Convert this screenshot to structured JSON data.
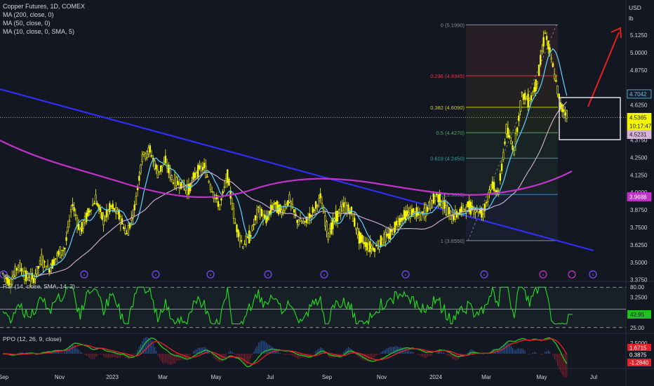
{
  "legend": {
    "title": "Copper Futures, 1D, COMEX",
    "ma200": "MA (200, close, 0)",
    "ma50": "MA (50, close, 0)",
    "ma10": "MA (10, close, 0, SMA, 5)"
  },
  "price_axis": {
    "currency": "USD",
    "unit": "lb",
    "ticks": [
      "5.1250",
      "5.0000",
      "4.8750",
      "4.6250",
      "4.3750",
      "4.2500",
      "4.1250",
      "4.0000",
      "3.8750",
      "3.7500",
      "3.6250",
      "3.5000",
      "3.3750",
      "3.2500",
      "3.1250"
    ],
    "badges": [
      {
        "text": "4.7042",
        "price": 4.7042,
        "bg": "#1a1e2a",
        "fg": "#5bc8f0",
        "border": "#5bc8f0"
      },
      {
        "text": "4.5365",
        "price": 4.5365,
        "bg": "#f5f500",
        "fg": "#131722",
        "border": "#f5f500"
      },
      {
        "text": "10:17:47",
        "price": 4.475,
        "bg": "#f5f500",
        "fg": "#131722",
        "border": "#f5f500"
      },
      {
        "text": "4.5231",
        "price": 4.415,
        "bg": "#d7b4d8",
        "fg": "#131722",
        "border": "#d7b4d8"
      },
      {
        "text": "3.9688",
        "price": 3.9688,
        "bg": "#c332c8",
        "fg": "#ffffff",
        "border": "#c332c8"
      }
    ]
  },
  "fib_levels": [
    {
      "label": "0 (5.1990)",
      "price": 5.199,
      "color": "#8a8e99"
    },
    {
      "label": "0.236 (4.8345)",
      "price": 4.8345,
      "color": "#e0393f"
    },
    {
      "label": "0.382 (4.6090)",
      "price": 4.609,
      "color": "#c8d400"
    },
    {
      "label": "0.5 (4.4270)",
      "price": 4.427,
      "color": "#4caf50"
    },
    {
      "label": "0.618 (4.2450)",
      "price": 4.245,
      "color": "#26a69a"
    },
    {
      "label": "0.786 (3.9855)",
      "price": 3.9855,
      "color": "#2f8fdd"
    },
    {
      "label": "1 (3.6550)",
      "price": 3.655,
      "color": "#8a8e99"
    }
  ],
  "rsi": {
    "label": "RSI (14, close, SMA, 14, 2)",
    "levels": [
      "80.00",
      "25.00"
    ],
    "value": "42.95"
  },
  "ppo": {
    "label": "PPO (12, 26, 9, close)",
    "ticks": [
      "2.5000",
      "-2.5000"
    ],
    "values": [
      "1.6715",
      "0.3875",
      "-1.2840"
    ]
  },
  "x_axis": {
    "labels": [
      "Sep",
      "Nov",
      "2023",
      "Mar",
      "May",
      "Jul",
      "Sep",
      "Nov",
      "2024",
      "Mar",
      "May",
      "Jul"
    ]
  },
  "colors": {
    "background": "#131722",
    "candle": "#f5f500",
    "ma10": "#5bc8f0",
    "ma50": "#d7b4d8",
    "ma200": "#c332c8",
    "trendline": "#2f2ff0",
    "arrow": "#e8201b",
    "rsi": "#20e020",
    "ppo_line": "#20c020",
    "ppo_signal": "#e0202a",
    "event_icon": "#7a4ff0",
    "event_icon_current": "#c332c8"
  },
  "chart_data": {
    "type": "candlestick",
    "title": "Copper Futures, 1D, COMEX",
    "series": [
      {
        "name": "Copper Futures",
        "close": [
          3.42,
          3.35,
          3.48,
          3.4,
          3.38,
          3.52,
          3.45,
          3.55,
          3.6,
          3.92,
          3.72,
          3.85,
          3.95,
          3.8,
          3.9,
          3.84,
          3.7,
          3.88,
          4.26,
          4.3,
          4.14,
          4.22,
          4.08,
          4.06,
          4.02,
          4.15,
          4.18,
          4.02,
          3.9,
          4.12,
          3.78,
          3.62,
          3.7,
          3.88,
          3.8,
          3.92,
          3.86,
          3.95,
          3.8,
          3.78,
          3.86,
          3.96,
          3.7,
          3.82,
          3.9,
          3.86,
          3.68,
          3.62,
          3.6,
          3.66,
          3.7,
          3.79,
          3.84,
          3.86,
          3.83,
          3.9,
          3.98,
          3.9,
          3.82,
          3.86,
          3.9,
          3.88,
          3.85,
          4.05,
          4.0,
          4.45,
          4.3,
          4.7,
          4.65,
          4.8,
          5.15,
          4.9,
          4.62,
          4.54
        ]
      },
      {
        "name": "MA (10, close, 0, SMA, 5)",
        "last": 4.7042
      },
      {
        "name": "MA (50, close, 0)",
        "last": 4.5231
      },
      {
        "name": "MA (200, close, 0)",
        "last": 3.9688
      }
    ],
    "y_axis": {
      "unit": "USD/lb",
      "range": [
        3.125,
        5.2
      ]
    },
    "x_range": [
      "2022-09",
      "2024-07"
    ],
    "fibonacci": {
      "high": 5.199,
      "low": 3.655
    },
    "rsi_last": 42.95,
    "ppo_last": [
      1.6715,
      0.3875,
      -1.284
    ]
  }
}
